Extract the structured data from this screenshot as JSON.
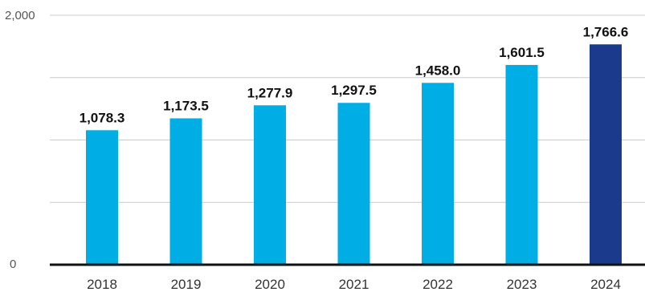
{
  "chart_data": {
    "type": "bar",
    "title": "",
    "xlabel": "",
    "ylabel": "",
    "ylim": [
      0,
      2000
    ],
    "yticks": [
      0,
      2000
    ],
    "grid": true,
    "gridlines": [
      0,
      500,
      1000,
      1500,
      2000
    ],
    "categories": [
      "2018",
      "2019",
      "2020",
      "2021",
      "2022",
      "2023",
      "2024"
    ],
    "values": [
      1078.3,
      1173.5,
      1277.9,
      1297.5,
      1458.0,
      1601.5,
      1766.6
    ],
    "value_labels": [
      "1,078.3",
      "1,173.5",
      "1,277.9",
      "1,297.5",
      "1,458.0",
      "1,601.5",
      "1,766.6"
    ],
    "ytick_labels": [
      "0",
      "2,000"
    ],
    "colors": {
      "bar": "#00aee6",
      "highlight": "#1b3a8c",
      "highlight_index": 6,
      "grid": "#cccccc",
      "axis": "#111111"
    }
  }
}
